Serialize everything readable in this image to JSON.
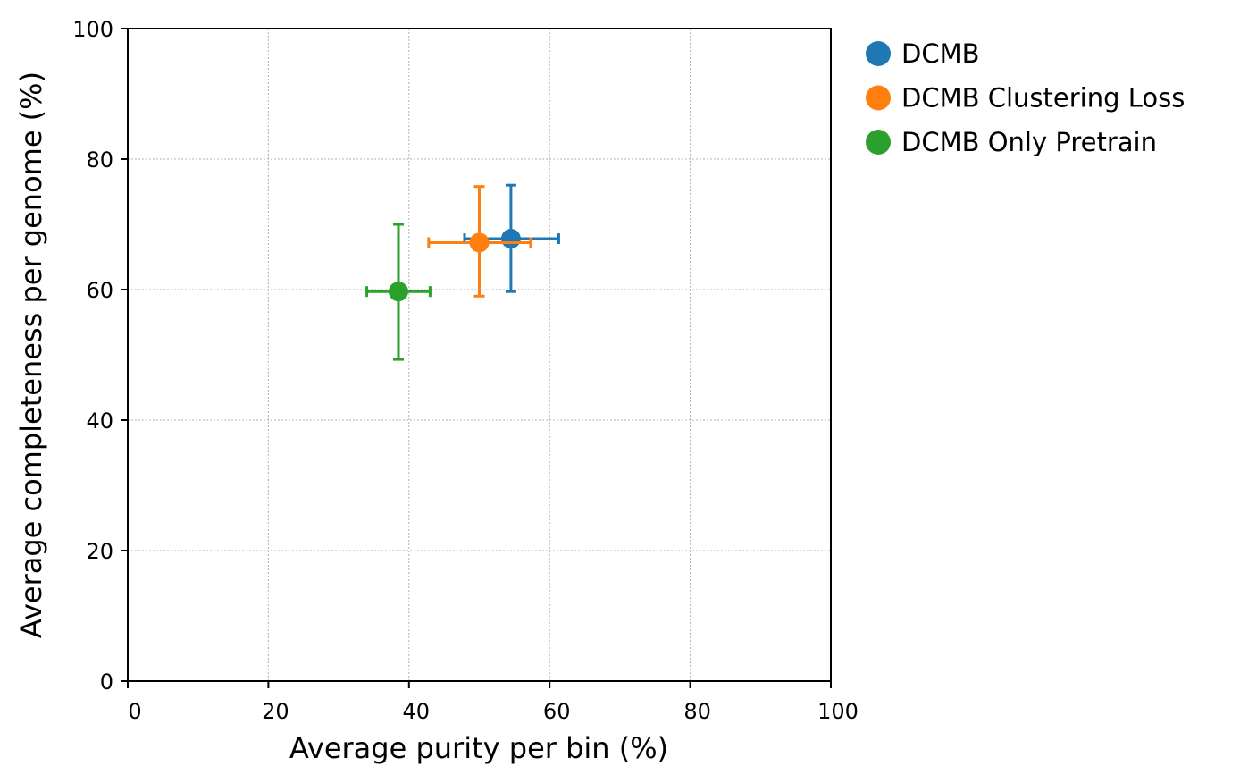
{
  "chart_data": {
    "type": "scatter",
    "title": "",
    "xlabel": "Average purity per bin (%)",
    "ylabel": "Average completeness per genome (%)",
    "xlim": [
      0,
      100
    ],
    "ylim": [
      0,
      100
    ],
    "xticks": [
      "0",
      "20",
      "40",
      "60",
      "80",
      "100"
    ],
    "yticks": [
      "0",
      "20",
      "40",
      "60",
      "80",
      "100"
    ],
    "grid": true,
    "legend_position": "outside-right",
    "series": [
      {
        "name": "DCMB",
        "color": "#1f77b4",
        "x": 54.5,
        "y": 67.8,
        "x_err": [
          47.9,
          61.3
        ],
        "y_err": [
          59.7,
          76.0
        ]
      },
      {
        "name": "DCMB Clustering Loss",
        "color": "#ff7f0e",
        "x": 50.0,
        "y": 67.2,
        "x_err": [
          42.8,
          57.3
        ],
        "y_err": [
          59.0,
          75.8
        ]
      },
      {
        "name": "DCMB Only Pretrain",
        "color": "#2ca02c",
        "x": 38.5,
        "y": 59.7,
        "x_err": [
          34.0,
          43.0
        ],
        "y_err": [
          49.3,
          70.0
        ]
      }
    ]
  }
}
